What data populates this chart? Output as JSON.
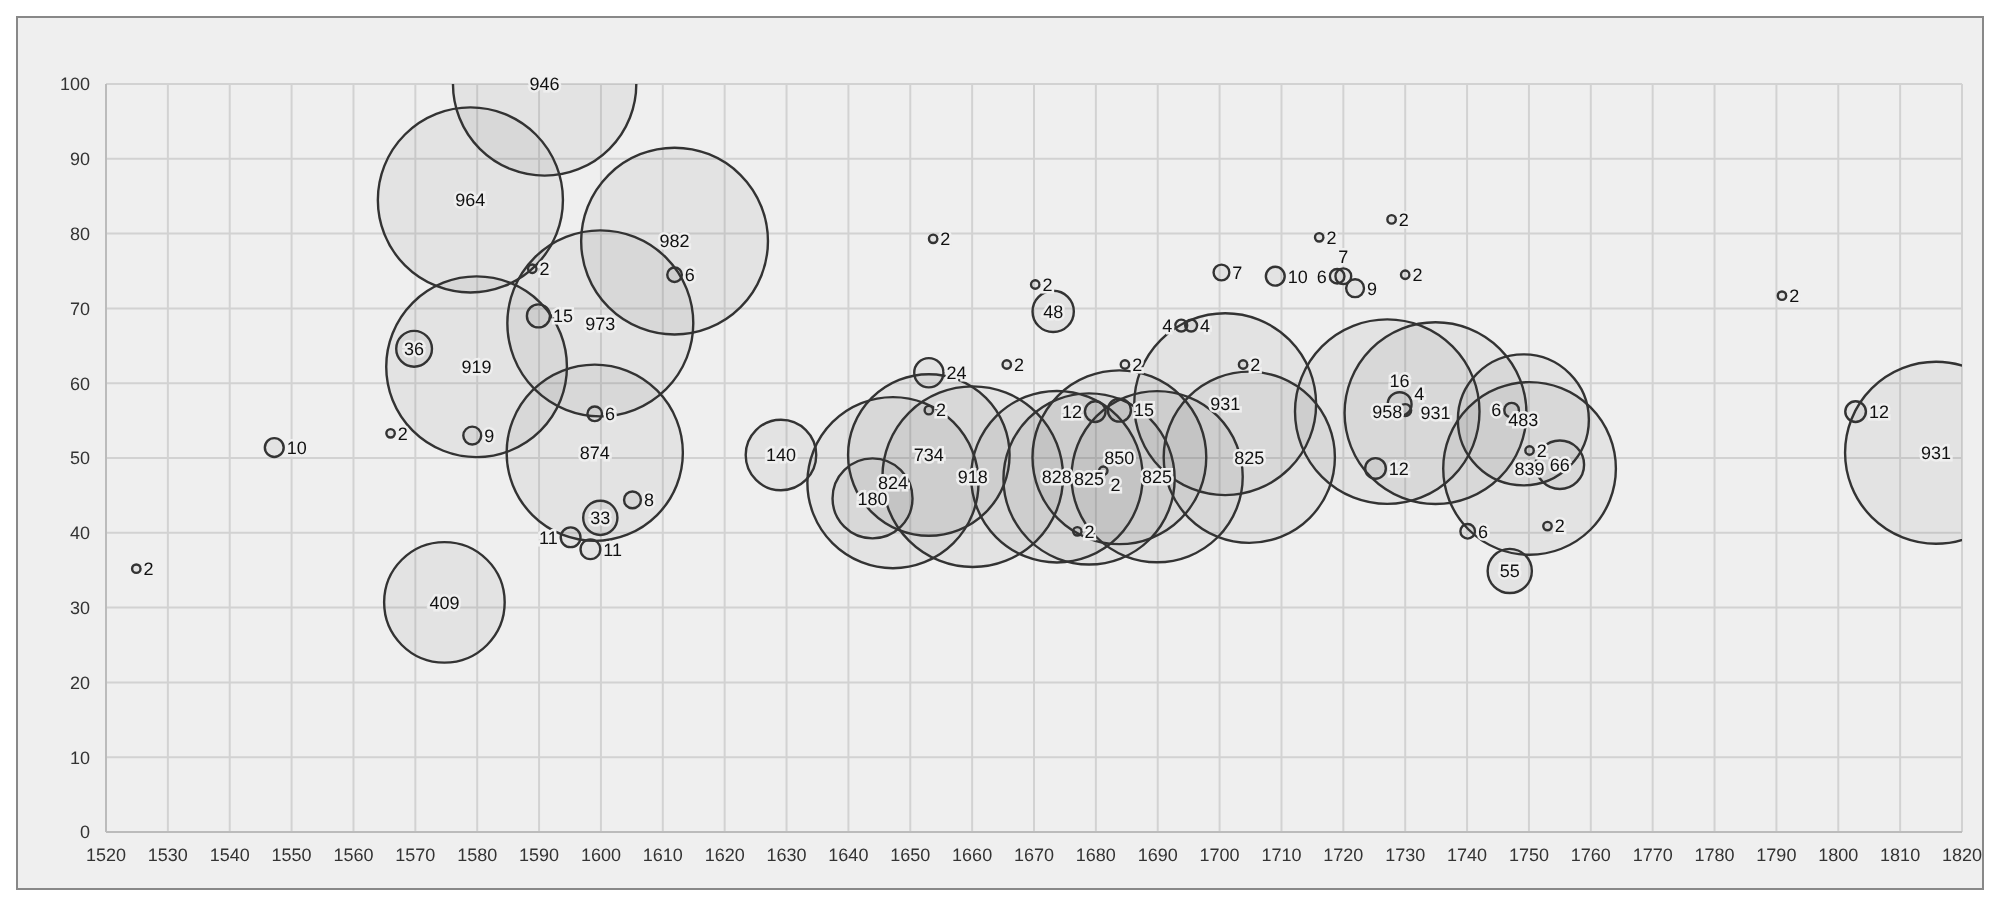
{
  "chart_data": {
    "type": "bubble",
    "color": "#333333",
    "marker": "circle",
    "grid": true,
    "value_labels": [
      "2",
      "10",
      "2",
      "36",
      "409",
      "964",
      "919",
      "9",
      "946",
      "2",
      "15",
      "973",
      "982",
      "6",
      "6",
      "874",
      "33",
      "8",
      "11",
      "11",
      "140",
      "180",
      "824",
      "734",
      "24",
      "2",
      "918",
      "2",
      "48",
      "828",
      "825",
      "2",
      "12",
      "15",
      "2",
      "850",
      "2",
      "825",
      "931",
      "825",
      "2",
      "4",
      "4",
      "2",
      "2",
      "10",
      "6",
      "7",
      "9",
      "2",
      "7",
      "2",
      "2",
      "958",
      "16",
      "4",
      "931",
      "12",
      "6",
      "483",
      "2",
      "839",
      "66",
      "2",
      "6",
      "55",
      "2",
      "12",
      "931"
    ],
    "xlim": [
      1520,
      1820
    ],
    "xticks": [
      1520,
      1530,
      1540,
      1550,
      1560,
      1570,
      1580,
      1590,
      1600,
      1610,
      1620,
      1630,
      1640,
      1650,
      1660,
      1670,
      1680,
      1690,
      1700,
      1710,
      1720,
      1730,
      1740,
      1750,
      1760,
      1770,
      1780,
      1790,
      1800,
      1810,
      1820
    ],
    "ylim": [
      0,
      100
    ],
    "yticks": [
      0,
      10,
      20,
      30,
      40,
      50,
      60,
      70,
      80,
      90,
      100
    ],
    "x": [
      1524.9,
      1547.2,
      1566.0,
      1569.8,
      1574.7,
      1578.9,
      1579.9,
      1579.2,
      1590.9,
      1588.9,
      1589.9,
      1599.9,
      1611.9,
      1611.9,
      1599.0,
      1599.0,
      1599.9,
      1605.1,
      1595.1,
      1598.3,
      1629.1,
      1643.9,
      1647.2,
      1653.0,
      1653.0,
      1653.0,
      1660.1,
      1665.6,
      1673.1,
      1673.7,
      1678.9,
      1677.0,
      1679.9,
      1683.8,
      1684.7,
      1683.8,
      1681.2,
      1689.9,
      1700.9,
      1704.8,
      1703.8,
      1693.8,
      1695.4,
      1716.1,
      1727.8,
      1709.0,
      1719.0,
      1720.0,
      1721.9,
      1730.0,
      1700.3,
      1653.7,
      1670.2,
      1727.1,
      1729.1,
      1730.0,
      1734.9,
      1725.2,
      1747.2,
      1749.1,
      1750.1,
      1750.1,
      1755.0,
      1753.0,
      1740.1,
      1746.9,
      1790.9,
      1802.8,
      1815.8
    ],
    "values": [
      35.2,
      51.4,
      53.3,
      64.6,
      30.7,
      84.5,
      62.2,
      53.0,
      100,
      75.3,
      69.0,
      68.0,
      79.0,
      74.5,
      55.9,
      50.7,
      42.0,
      44.4,
      39.4,
      37.8,
      50.4,
      44.6,
      46.7,
      50.4,
      61.4,
      56.4,
      47.5,
      62.5,
      69.6,
      47.5,
      47.2,
      40.2,
      56.2,
      56.4,
      62.5,
      50.1,
      48.3,
      47.5,
      57.2,
      50.1,
      62.5,
      67.7,
      67.7,
      79.5,
      81.9,
      74.3,
      74.3,
      74.3,
      72.7,
      74.5,
      74.8,
      79.3,
      73.2,
      56.2,
      57.2,
      56.4,
      56.0,
      48.6,
      56.4,
      55.1,
      51.0,
      48.6,
      49.1,
      40.9,
      40.2,
      34.9,
      71.7,
      56.2,
      50.7
    ],
    "sizes": [
      2,
      10,
      2,
      36,
      409,
      964,
      919,
      9,
      946,
      2,
      15,
      973,
      982,
      6,
      6,
      874,
      33,
      8,
      11,
      11,
      140,
      180,
      824,
      734,
      24,
      2,
      918,
      2,
      48,
      828,
      825,
      2,
      12,
      15,
      2,
      850,
      2,
      825,
      931,
      825,
      2,
      4,
      4,
      2,
      2,
      10,
      6,
      7,
      9,
      2,
      7,
      2,
      2,
      958,
      16,
      4,
      931,
      12,
      6,
      483,
      2,
      839,
      66,
      2,
      6,
      55,
      2,
      12,
      931
    ]
  }
}
